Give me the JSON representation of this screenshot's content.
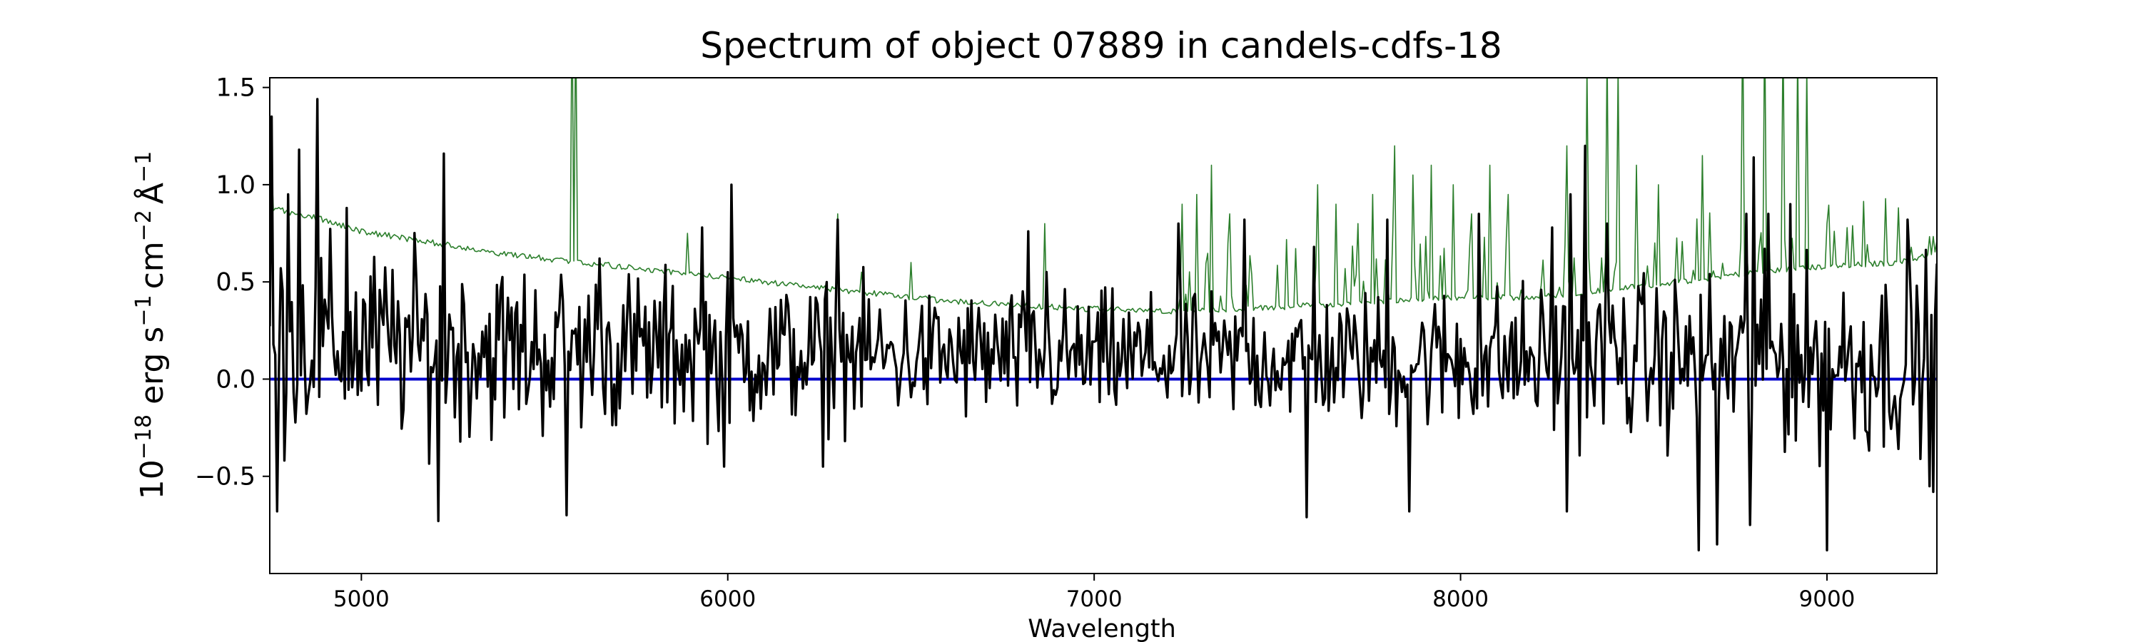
{
  "chart_data": {
    "type": "line",
    "title": "Spectrum of object 07889 in candels-cdfs-18",
    "xlabel": "Wavelength",
    "ylabel": {
      "prefix": "10",
      "prefix_exp": "−18",
      "erg": "erg",
      "s": "s",
      "s_exp": "−1",
      "cm": "cm",
      "cm_exp": "−2",
      "angstrom": "Å",
      "angstrom_exp": "−1"
    },
    "xlim": [
      4750,
      9300
    ],
    "ylim": [
      -1.0,
      1.55
    ],
    "xticks": [
      5000,
      6000,
      7000,
      8000,
      9000
    ],
    "xtick_labels": [
      "5000",
      "6000",
      "7000",
      "8000",
      "9000"
    ],
    "yticks": [
      -0.5,
      0.0,
      0.5,
      1.0,
      1.5
    ],
    "ytick_labels": [
      "−0.5",
      "0.0",
      "0.5",
      "1.0",
      "1.5"
    ],
    "grid": false,
    "sampling": {
      "start": 4750,
      "step": 5
    },
    "series": [
      {
        "role": "flux",
        "color": "#000000",
        "continuum": [
          [
            4750,
            0.2
          ],
          [
            5500,
            0.15
          ],
          [
            6500,
            0.12
          ],
          [
            7500,
            0.1
          ],
          [
            8500,
            0.1
          ],
          [
            9300,
            0.1
          ]
        ],
        "noise": [
          [
            4750,
            0.38
          ],
          [
            5500,
            0.32
          ],
          [
            6500,
            0.25
          ],
          [
            7500,
            0.23
          ],
          [
            8000,
            0.27
          ],
          [
            8500,
            0.3
          ],
          [
            9300,
            0.38
          ]
        ],
        "features": [
          [
            4755,
            1.35
          ],
          [
            4800,
            0.95
          ],
          [
            4830,
            1.18
          ],
          [
            4880,
            1.44
          ],
          [
            4960,
            0.88
          ],
          [
            5225,
            1.16
          ],
          [
            5650,
            0.62
          ],
          [
            5930,
            0.78
          ],
          [
            6010,
            1.0
          ],
          [
            6300,
            0.82
          ],
          [
            6820,
            0.76
          ],
          [
            6870,
            0.55
          ],
          [
            7230,
            0.8
          ],
          [
            7410,
            0.82
          ],
          [
            7600,
            0.68
          ],
          [
            7800,
            0.82
          ],
          [
            8050,
            0.85
          ],
          [
            8250,
            0.78
          ],
          [
            8300,
            0.95
          ],
          [
            8340,
            1.2
          ],
          [
            8400,
            0.8
          ],
          [
            8700,
            0.82
          ],
          [
            8780,
            0.85
          ],
          [
            8800,
            1.14
          ],
          [
            8840,
            0.85
          ],
          [
            8900,
            0.9
          ],
          [
            9220,
            0.82
          ],
          [
            4770,
            -0.68
          ],
          [
            5210,
            -0.73
          ],
          [
            5560,
            -0.7
          ],
          [
            5990,
            -0.45
          ],
          [
            6260,
            -0.45
          ],
          [
            7580,
            -0.71
          ],
          [
            7860,
            -0.68
          ],
          [
            8290,
            -0.68
          ],
          [
            8650,
            -0.88
          ],
          [
            8700,
            -0.85
          ],
          [
            8790,
            -0.75
          ],
          [
            9000,
            -0.88
          ],
          [
            9290,
            -0.58
          ]
        ]
      },
      {
        "role": "uncertainty",
        "color": "#2c7f2c",
        "continuum": [
          [
            4750,
            1.3
          ],
          [
            4760,
            0.88
          ],
          [
            4800,
            0.86
          ],
          [
            4900,
            0.82
          ],
          [
            5000,
            0.76
          ],
          [
            5200,
            0.7
          ],
          [
            5400,
            0.64
          ],
          [
            5600,
            0.6
          ],
          [
            5800,
            0.56
          ],
          [
            6000,
            0.52
          ],
          [
            6200,
            0.48
          ],
          [
            6400,
            0.44
          ],
          [
            6600,
            0.4
          ],
          [
            6800,
            0.38
          ],
          [
            7000,
            0.36
          ],
          [
            7200,
            0.35
          ],
          [
            7400,
            0.36
          ],
          [
            7600,
            0.38
          ],
          [
            7800,
            0.4
          ],
          [
            8000,
            0.42
          ],
          [
            8200,
            0.42
          ],
          [
            8400,
            0.46
          ],
          [
            8600,
            0.5
          ],
          [
            8800,
            0.55
          ],
          [
            9000,
            0.58
          ],
          [
            9200,
            0.6
          ],
          [
            9300,
            0.65
          ]
        ],
        "features": [
          [
            5575,
            2.0
          ],
          [
            5585,
            1.9
          ],
          [
            5890,
            0.75
          ],
          [
            6300,
            0.85
          ],
          [
            6365,
            0.55
          ],
          [
            6500,
            0.6
          ],
          [
            6865,
            0.8
          ],
          [
            7240,
            0.9
          ],
          [
            7280,
            0.95
          ],
          [
            7320,
            1.1
          ],
          [
            7370,
            0.85
          ],
          [
            7610,
            1.0
          ],
          [
            7660,
            0.9
          ],
          [
            7720,
            0.8
          ],
          [
            7760,
            0.95
          ],
          [
            7820,
            1.2
          ],
          [
            7870,
            1.05
          ],
          [
            7920,
            1.1
          ],
          [
            7980,
            1.0
          ],
          [
            8030,
            0.85
          ],
          [
            8080,
            1.1
          ],
          [
            8130,
            0.95
          ],
          [
            8290,
            1.2
          ],
          [
            8345,
            1.6
          ],
          [
            8400,
            1.7
          ],
          [
            8430,
            1.6
          ],
          [
            8480,
            1.1
          ],
          [
            8540,
            1.0
          ],
          [
            8660,
            1.15
          ],
          [
            8770,
            1.9
          ],
          [
            8830,
            1.9
          ],
          [
            8880,
            1.8
          ],
          [
            8920,
            1.7
          ],
          [
            8945,
            1.6
          ],
          [
            9000,
            0.8
          ]
        ]
      },
      {
        "role": "zero",
        "color": "#0000cc",
        "values": [
          [
            4750,
            0.0
          ],
          [
            9300,
            0.0
          ]
        ]
      }
    ]
  }
}
